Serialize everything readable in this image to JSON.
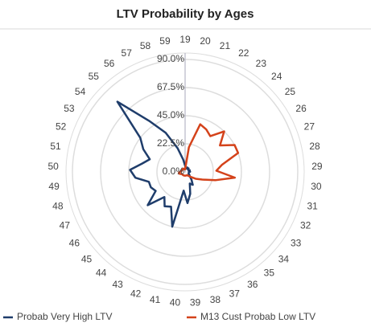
{
  "chart_data": {
    "type": "radar",
    "title": "LTV Probability by Ages",
    "categories": [
      "19",
      "20",
      "21",
      "22",
      "23",
      "24",
      "25",
      "26",
      "27",
      "28",
      "29",
      "30",
      "31",
      "32",
      "33",
      "34",
      "35",
      "36",
      "37",
      "38",
      "39",
      "40",
      "41",
      "42",
      "43",
      "44",
      "45",
      "46",
      "47",
      "48",
      "49",
      "50",
      "51",
      "52",
      "53",
      "54",
      "55",
      "56",
      "57",
      "58",
      "59"
    ],
    "series": [
      {
        "name": "Probab Very High LTV",
        "color": "#1f3d6b",
        "values": [
          5,
          3,
          3,
          4,
          3,
          4,
          3,
          3,
          4,
          3,
          4,
          3,
          3,
          3,
          4,
          5,
          8,
          12,
          10,
          18,
          25,
          15,
          45,
          30,
          32,
          26,
          40,
          28,
          30,
          30,
          40,
          44,
          35,
          30,
          38,
          45,
          78,
          50,
          35,
          20,
          10
        ]
      },
      {
        "name": "M13  Cust Probab Low LTV",
        "color": "#d4421a",
        "values": [
          2,
          20,
          40,
          38,
          35,
          45,
          35,
          45,
          45,
          30,
          25,
          40,
          25,
          15,
          10,
          6,
          4,
          3,
          3,
          3,
          3,
          3,
          3,
          3,
          3,
          3,
          3,
          3,
          4,
          5,
          5,
          4,
          3,
          3,
          3,
          3,
          3,
          3,
          3,
          2,
          2
        ]
      }
    ],
    "ylim": [
      0,
      90
    ],
    "yticks": [
      {
        "value": 0,
        "label": "0.0%"
      },
      {
        "value": 22.5,
        "label": "22.5%"
      },
      {
        "value": 45,
        "label": "45.0%"
      },
      {
        "value": 67.5,
        "label": "67.5%"
      },
      {
        "value": 90,
        "label": "90.0%"
      }
    ],
    "grid": true,
    "legend": "bottom"
  }
}
